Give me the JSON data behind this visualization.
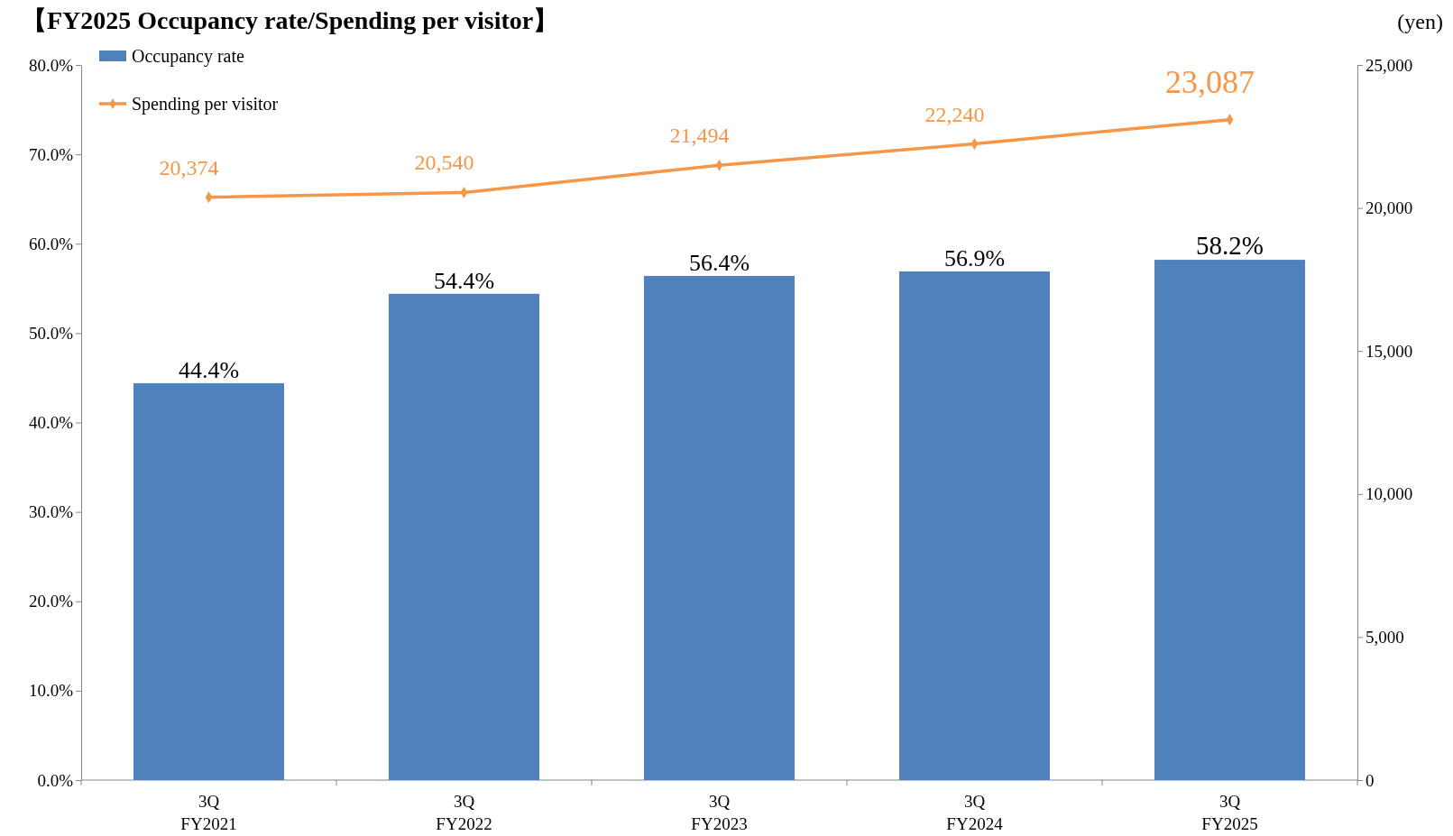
{
  "chart_data": {
    "type": "bar",
    "title": "【FY2025 Occupancy rate/Spending per visitor】",
    "y2label": "(yen)",
    "categories": [
      "3Q\nFY2021",
      "3Q\nFY2022",
      "3Q\nFY2023",
      "3Q\nFY2024",
      "3Q\nFY2025"
    ],
    "series": [
      {
        "name": "Occupancy rate",
        "color": "#4f81bd",
        "values": [
          44.4,
          54.4,
          56.4,
          56.9,
          58.2
        ],
        "value_labels": [
          "44.4%",
          "54.4%",
          "56.4%",
          "56.9%",
          "58.2%"
        ]
      },
      {
        "name": "Spending per visitor",
        "type": "line",
        "axis": "y2",
        "color": "#f79646",
        "marker": "diamond",
        "values": [
          20374,
          20540,
          21494,
          22240,
          23087
        ],
        "value_labels": [
          "20,374",
          "20,540",
          "21,494",
          "22,240",
          "23,087"
        ]
      }
    ],
    "ylim": [
      0,
      80
    ],
    "yticks": [
      {
        "value": 0,
        "label": "0.0%"
      },
      {
        "value": 10,
        "label": "10.0%"
      },
      {
        "value": 20,
        "label": "20.0%"
      },
      {
        "value": 30,
        "label": "30.0%"
      },
      {
        "value": 40,
        "label": "40.0%"
      },
      {
        "value": 50,
        "label": "50.0%"
      },
      {
        "value": 60,
        "label": "60.0%"
      },
      {
        "value": 70,
        "label": "70.0%"
      },
      {
        "value": 80,
        "label": "80.0%"
      }
    ],
    "y2lim": [
      0,
      25000
    ],
    "y2ticks": [
      0,
      {
        "value": 5000,
        "label": "5,000"
      },
      {
        "value": 10000,
        "label": "10,000"
      },
      {
        "value": 15000,
        "label": "15,000"
      },
      {
        "value": 20000,
        "label": "20,000"
      },
      {
        "value": 25000,
        "label": "25,000"
      }
    ],
    "legend": "top left",
    "grid": false
  }
}
